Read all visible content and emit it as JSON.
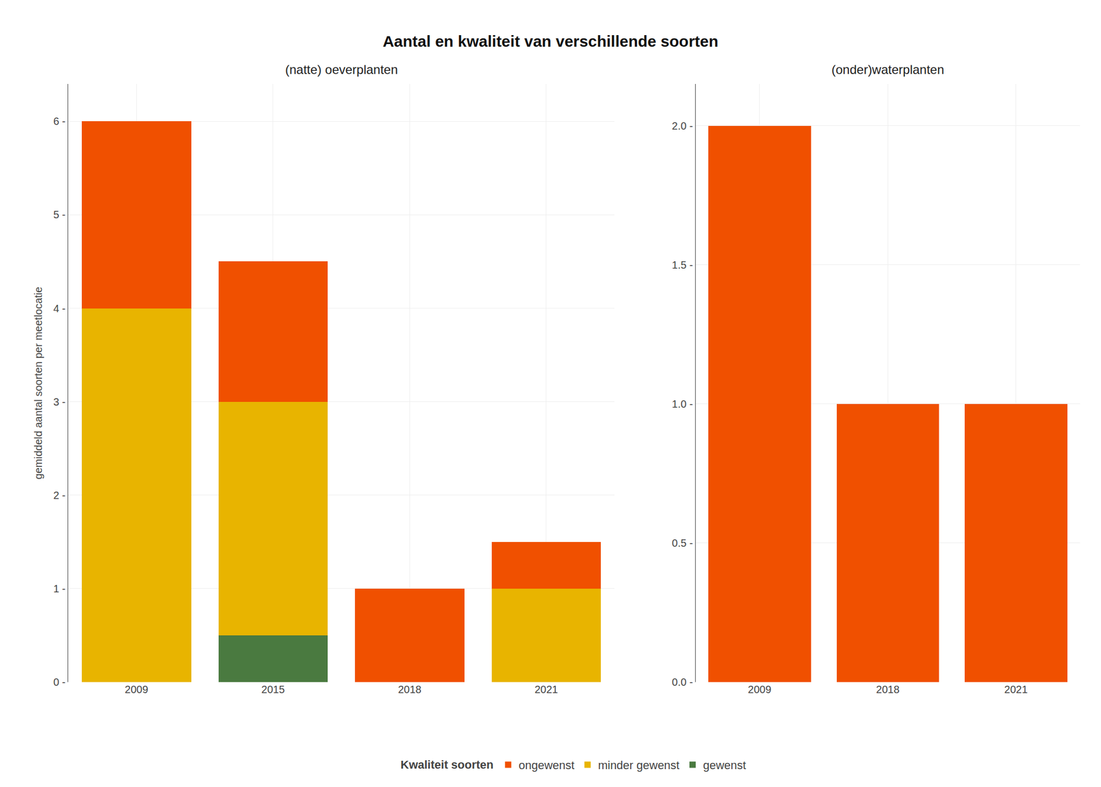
{
  "chart_data": [
    {
      "type": "bar",
      "title": "Aantal en kwaliteit van verschillende soorten",
      "subtitle": "(natte) oeverplanten",
      "ylabel": "gemiddeld aantal soorten per meetlocatie",
      "legend_title": "Kwaliteit soorten",
      "legend": "bottom",
      "stacked": true,
      "grid": true,
      "categories": [
        "2009",
        "2015",
        "2018",
        "2021"
      ],
      "series": [
        {
          "name": "gewenst",
          "color": "#4A7A40",
          "values": [
            0.0,
            0.5,
            0.0,
            0.0
          ]
        },
        {
          "name": "minder gewenst",
          "color": "#E8B400",
          "values": [
            4.0,
            2.5,
            0.0,
            1.0
          ]
        },
        {
          "name": "ongewenst",
          "color": "#F05000",
          "values": [
            2.0,
            1.5,
            1.0,
            0.5
          ]
        }
      ],
      "ylim": [
        0,
        6.4
      ],
      "yticks": [
        {
          "value": 0,
          "label": "0 -"
        },
        {
          "value": 1,
          "label": "1 -"
        },
        {
          "value": 2,
          "label": "2 -"
        },
        {
          "value": 3,
          "label": "3 -"
        },
        {
          "value": 4,
          "label": "4 -"
        },
        {
          "value": 5,
          "label": "5 -"
        },
        {
          "value": 6,
          "label": "6 -"
        }
      ]
    },
    {
      "type": "bar",
      "subtitle": "(onder)waterplanten",
      "stacked": true,
      "grid": true,
      "categories": [
        "2009",
        "2018",
        "2021"
      ],
      "series": [
        {
          "name": "gewenst",
          "color": "#4A7A40",
          "values": [
            0.0,
            0.0,
            0.0
          ]
        },
        {
          "name": "minder gewenst",
          "color": "#E8B400",
          "values": [
            0.0,
            0.0,
            0.0
          ]
        },
        {
          "name": "ongewenst",
          "color": "#F05000",
          "values": [
            2.0,
            1.0,
            1.0
          ]
        }
      ],
      "ylim": [
        0,
        2.15
      ],
      "yticks": [
        {
          "value": 0.0,
          "label": "0.0 -"
        },
        {
          "value": 0.5,
          "label": "0.5 -"
        },
        {
          "value": 1.0,
          "label": "1.0 -"
        },
        {
          "value": 1.5,
          "label": "1.5 -"
        },
        {
          "value": 2.0,
          "label": "2.0 -"
        }
      ]
    }
  ]
}
